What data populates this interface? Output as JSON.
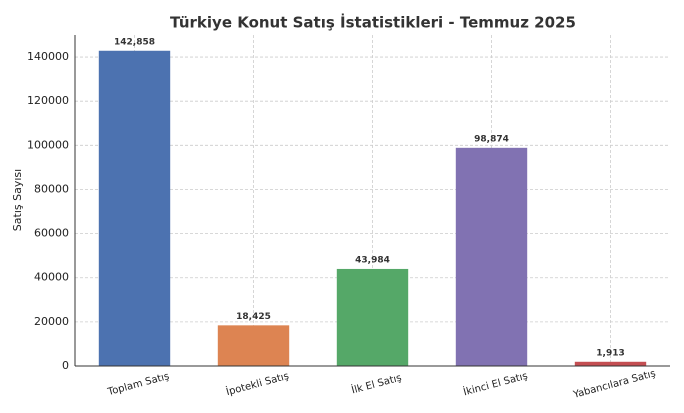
{
  "chart_data": {
    "type": "bar",
    "title": "Türkiye Konut Satış İstatistikleri - Temmuz 2025",
    "y_label": "Satış Sayısı",
    "categories": [
      "Toplam Satış",
      "İpotekli Satış",
      "İlk El Satış",
      "İkinci El Satış",
      "Yabancılara Satış"
    ],
    "values": [
      142858,
      18425,
      43984,
      98874,
      1913
    ],
    "value_labels": [
      "142,858",
      "18,425",
      "43,984",
      "98,874",
      "1,913"
    ],
    "colors": [
      "#4c72b0",
      "#dd8452",
      "#55a868",
      "#8172b2",
      "#c44e52"
    ],
    "ylim": [
      0,
      150000
    ],
    "yticks": [
      0,
      20000,
      40000,
      60000,
      80000,
      100000,
      120000,
      140000
    ],
    "grid": true
  }
}
